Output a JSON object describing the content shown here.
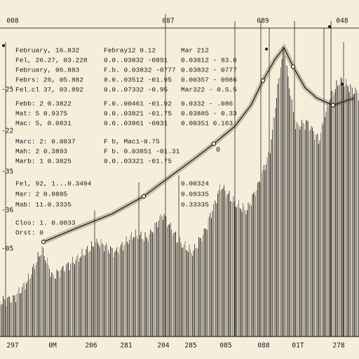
{
  "top_labels": [
    "008",
    "087",
    "089",
    "048"
  ],
  "left_labels": [
    "-25",
    "-22",
    "-35",
    "-36",
    "-05"
  ],
  "bottom_labels": [
    "297",
    "0M",
    "206",
    "281",
    "204",
    "285",
    "085",
    "088",
    "01T",
    "278"
  ],
  "annotations": {
    "left": [
      "February, 16.832",
      "Fel, 26.27, 03.228",
      "February, 06.883",
      "Febrs: 26, 05.882",
      "Fel.cl  37, 03.892",
      "Febb:  2  0.3822",
      "Mat:   5  0.9375",
      "Mac:   5, 0.0831",
      "Marc:  2:  0.0837",
      "Mah:  2  0.3893",
      "Marb:  1  0.3825",
      "Fel, 92, 1...0.3494",
      "Mar:  2  0.0885",
      "Mab:  11.0.3335",
      "Clos:  1. 0.0833",
      "Orst:  0"
    ],
    "middle": [
      "Febray12  0.12",
      "0.0..03832 -0891",
      "F.b. 0.03832 -0777",
      "0.0..03512 -01.95",
      "0.0..07332 -0.95",
      "F.0..00461 -01.92",
      "0.0..03821 -01.75",
      "0.0..03861 -0831",
      "F b, Mac1-0.75",
      "F b. 0.03851 -01.31",
      "0.0..03321 -01.75"
    ],
    "right": [
      "Mar 212",
      "0.03812 - 83.6",
      "0.03832 - 0777",
      "0.00357 - 0986",
      "Mar322 - 0.S.5",
      "0.0332 - .086",
      "0.03885 - 0.33",
      "0.00351 0.163",
      "0.00324",
      "0.09335",
      "0.33335"
    ]
  },
  "marker_label": "0"
}
